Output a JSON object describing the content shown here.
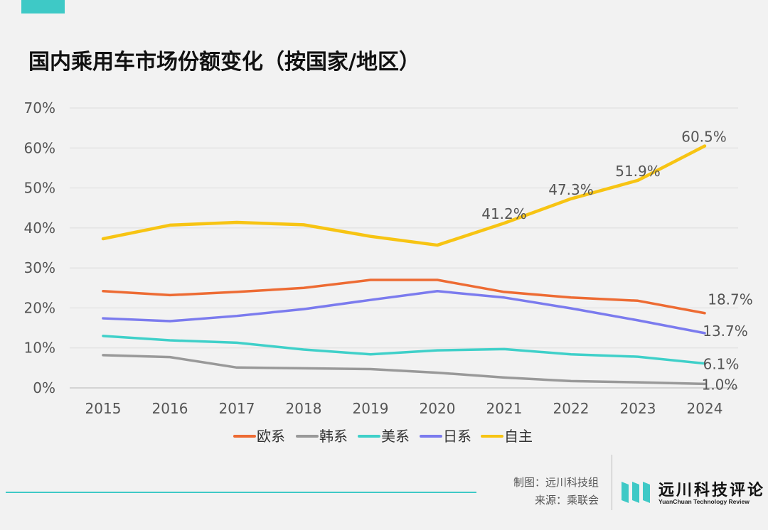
{
  "header": {
    "title": "国内乘用车市场份额变化（按国家/地区）"
  },
  "chart_data": {
    "type": "line",
    "title": "国内乘用车市场份额变化（按国家/地区）",
    "categories": [
      "2015",
      "2016",
      "2017",
      "2018",
      "2019",
      "2020",
      "2021",
      "2022",
      "2023",
      "2024"
    ],
    "y_ticks": [
      "0%",
      "10%",
      "20%",
      "30%",
      "40%",
      "50%",
      "60%",
      "70%"
    ],
    "ylim": [
      0,
      70
    ],
    "grid": true,
    "legend_position": "bottom",
    "series": [
      {
        "name": "欧系",
        "color": "#ed6b33",
        "values": [
          24.2,
          23.2,
          24.0,
          25.0,
          27.0,
          27.0,
          24.0,
          22.6,
          21.8,
          18.7
        ],
        "labels": [
          "",
          "",
          "",
          "",
          "",
          "",
          "",
          "",
          "",
          "18.7%"
        ]
      },
      {
        "name": "韩系",
        "color": "#999999",
        "values": [
          8.2,
          7.7,
          5.1,
          4.9,
          4.7,
          3.8,
          2.6,
          1.7,
          1.4,
          1.0
        ],
        "labels": [
          "",
          "",
          "",
          "",
          "",
          "",
          "",
          "",
          "",
          "1.0%"
        ]
      },
      {
        "name": "美系",
        "color": "#3fd0c9",
        "values": [
          13.0,
          11.9,
          11.3,
          9.6,
          8.4,
          9.4,
          9.7,
          8.4,
          7.8,
          6.1
        ],
        "labels": [
          "",
          "",
          "",
          "",
          "",
          "",
          "",
          "",
          "",
          "6.1%"
        ]
      },
      {
        "name": "日系",
        "color": "#7b7bee",
        "values": [
          17.4,
          16.7,
          18.0,
          19.7,
          22.0,
          24.2,
          22.6,
          19.9,
          16.9,
          13.7
        ],
        "labels": [
          "",
          "",
          "",
          "",
          "",
          "",
          "",
          "",
          "",
          "13.7%"
        ]
      },
      {
        "name": "自主",
        "color": "#f7c413",
        "values": [
          37.3,
          40.7,
          41.4,
          40.8,
          37.9,
          35.7,
          41.2,
          47.3,
          51.9,
          60.5
        ],
        "labels": [
          "",
          "",
          "",
          "",
          "",
          "",
          "41.2%",
          "47.3%",
          "51.9%",
          "60.5%"
        ]
      }
    ]
  },
  "footer": {
    "credit_maker": "制图：远川科技组",
    "credit_source": "来源：乘联会",
    "logo_cn": "远川科技评论",
    "logo_en": "YuanChuan Technology Review"
  }
}
